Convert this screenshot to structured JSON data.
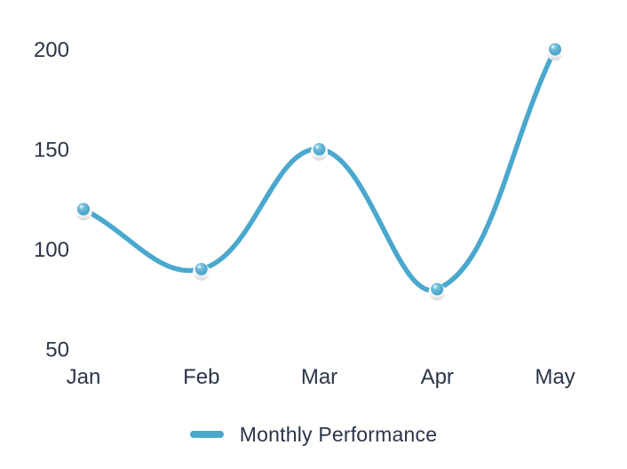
{
  "chart_data": {
    "type": "line",
    "categories": [
      "Jan",
      "Feb",
      "Mar",
      "Apr",
      "May"
    ],
    "series": [
      {
        "name": "Monthly Performance",
        "values": [
          120,
          90,
          150,
          80,
          200
        ]
      }
    ],
    "title": "",
    "xlabel": "",
    "ylabel": "",
    "y_ticks": [
      50,
      100,
      150,
      200
    ],
    "ylim": [
      50,
      200
    ],
    "grid": false,
    "smooth": true,
    "legend_position": "bottom",
    "line_color": "#4aa8ce",
    "point_style": "sphere"
  },
  "legend": {
    "label": "Monthly Performance"
  },
  "colors": {
    "line": "#4aa8ce",
    "point_highlight": "#cfeaf5",
    "point_base_top": "#ffffff",
    "point_base_bottom": "#d9d9dc",
    "text": "#2a3547",
    "background": "#ffffff"
  }
}
